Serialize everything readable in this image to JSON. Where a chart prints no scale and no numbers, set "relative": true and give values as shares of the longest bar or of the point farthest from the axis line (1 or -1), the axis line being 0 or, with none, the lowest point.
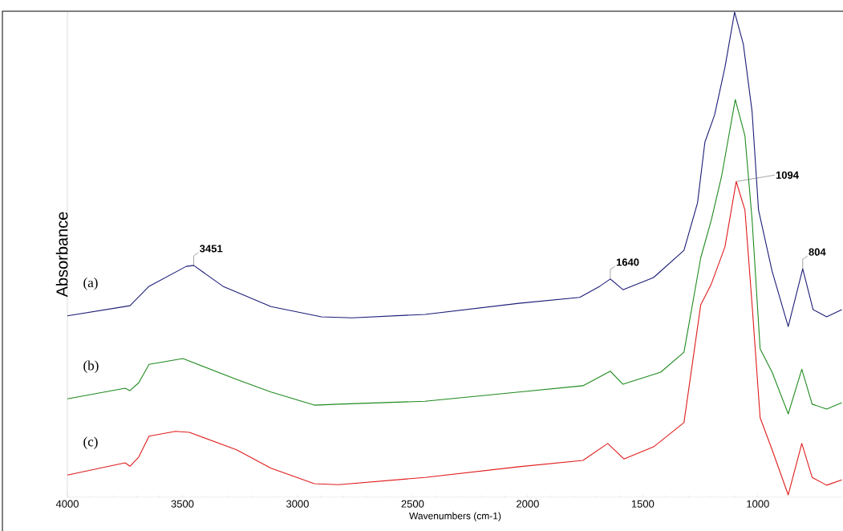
{
  "chart_data": {
    "type": "line",
    "relative": true,
    "xlabel": "Wavenumbers (cm-1)",
    "ylabel": "Absorbance",
    "xlim": [
      4000,
      630
    ],
    "xticks": [
      4000,
      3500,
      3000,
      2500,
      2000,
      1500,
      1000
    ],
    "x": [
      4000,
      3728,
      3645,
      3484,
      3451,
      3324,
      3115,
      2896,
      2763,
      2446,
      2038,
      1774,
      1687,
      1641,
      1586,
      1453,
      1321,
      1262,
      1230,
      1188,
      1143,
      1101,
      1063,
      1025,
      997,
      938,
      868,
      805,
      760,
      701,
      635
    ],
    "series": [
      {
        "name": "(a)",
        "color": "#1c1c78",
        "values": [
          0.374,
          0.395,
          0.435,
          0.476,
          0.478,
          0.435,
          0.393,
          0.372,
          0.37,
          0.377,
          0.4,
          0.412,
          0.435,
          0.45,
          0.428,
          0.453,
          0.509,
          0.607,
          0.732,
          0.788,
          0.886,
          1.0,
          0.934,
          0.795,
          0.592,
          0.466,
          0.352,
          0.471,
          0.387,
          0.372,
          0.387
        ]
      },
      {
        "name": "(b)",
        "color": "#1e8a1e",
        "x": [
          4000,
          3749,
          3728,
          3690,
          3645,
          3498,
          3265,
          3115,
          2927,
          2822,
          2446,
          2038,
          1760,
          1641,
          1586,
          1422,
          1321,
          1248,
          1202,
          1157,
          1098,
          1056,
          1025,
          990,
          938,
          868,
          809,
          764,
          701,
          635
        ],
        "values": [
          0.203,
          0.225,
          0.22,
          0.236,
          0.274,
          0.286,
          0.243,
          0.217,
          0.19,
          0.192,
          0.198,
          0.217,
          0.23,
          0.26,
          0.233,
          0.258,
          0.299,
          0.494,
          0.572,
          0.663,
          0.82,
          0.745,
          0.572,
          0.306,
          0.258,
          0.172,
          0.264,
          0.192,
          0.182,
          0.195
        ]
      },
      {
        "name": "(c)",
        "color": "#e01b1b",
        "x": [
          4000,
          3749,
          3728,
          3690,
          3645,
          3530,
          3470,
          3265,
          3115,
          2927,
          2822,
          2446,
          2038,
          1760,
          1652,
          1582,
          1453,
          1321,
          1248,
          1202,
          1143,
          1094,
          1056,
          1025,
          990,
          938,
          868,
          809,
          764,
          701,
          635
        ],
        "values": [
          0.046,
          0.071,
          0.064,
          0.083,
          0.126,
          0.136,
          0.134,
          0.098,
          0.06,
          0.028,
          0.026,
          0.041,
          0.063,
          0.076,
          0.111,
          0.079,
          0.104,
          0.154,
          0.397,
          0.44,
          0.516,
          0.651,
          0.592,
          0.397,
          0.164,
          0.098,
          0.005,
          0.111,
          0.041,
          0.025,
          0.036
        ]
      }
    ],
    "annotations": [
      {
        "text": "3451",
        "x": 3451,
        "y": 0.478
      },
      {
        "text": "1640",
        "x": 1641,
        "y": 0.45
      },
      {
        "text": "1094",
        "x": 1094,
        "y": 0.651
      },
      {
        "text": "804",
        "x": 805,
        "y": 0.471
      }
    ]
  }
}
